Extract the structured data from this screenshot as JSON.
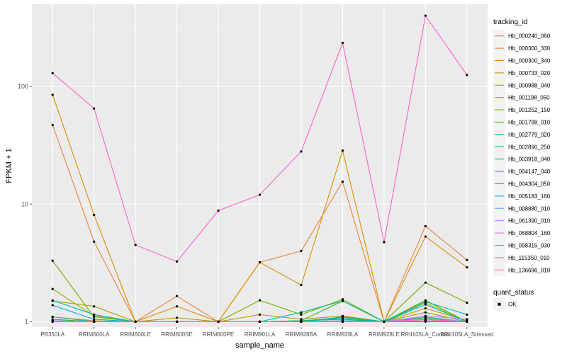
{
  "chart_data": {
    "type": "line",
    "xlabel": "sample_name",
    "ylabel": "FPKM + 1",
    "y_scale": "log10",
    "ylim": [
      0.9,
      500
    ],
    "yticks": [
      1,
      10,
      100
    ],
    "ytick_labels": [
      "1",
      "10",
      "100"
    ],
    "grid": true,
    "categories": [
      "PB350LA",
      "RRIM600LA",
      "RRIM600LE",
      "RRIM600SE",
      "RRIM600PE",
      "RRIM901LA",
      "RRIM928BA",
      "RRIM928LA",
      "RRIM928LE",
      "RRII105LA_Control",
      "RRII105LA_Stressed"
    ],
    "series": [
      {
        "name": "Hb_000240_060",
        "color": "#F8766D",
        "values": [
          1.02,
          1.0,
          1.0,
          1.0,
          1.0,
          1.0,
          1.0,
          1.02,
          1.0,
          1.02,
          1.0
        ]
      },
      {
        "name": "Hb_000300_330",
        "color": "#EC8239",
        "values": [
          47,
          4.8,
          1.0,
          1.65,
          1.0,
          3.2,
          4.0,
          15.5,
          1.0,
          6.5,
          3.35
        ]
      },
      {
        "name": "Hb_000300_340",
        "color": "#DB8E00",
        "values": [
          85,
          8.1,
          1.0,
          1.35,
          1.0,
          3.2,
          2.05,
          28.5,
          1.0,
          5.3,
          2.9
        ]
      },
      {
        "name": "Hb_000733_020",
        "color": "#C79800",
        "values": [
          1.1,
          1.02,
          1.0,
          1.08,
          1.0,
          1.15,
          1.05,
          1.12,
          1.0,
          1.3,
          1.02
        ]
      },
      {
        "name": "Hb_000988_040",
        "color": "#AFA100",
        "values": [
          1.5,
          1.35,
          1.0,
          1.0,
          1.0,
          1.0,
          1.02,
          1.08,
          1.0,
          1.45,
          1.0
        ]
      },
      {
        "name": "Hb_001198_050",
        "color": "#94AA00",
        "values": [
          1.9,
          1.12,
          1.0,
          1.0,
          1.0,
          1.0,
          1.02,
          1.05,
          1.0,
          1.2,
          1.0
        ]
      },
      {
        "name": "Hb_001252_150",
        "color": "#72B000",
        "values": [
          3.3,
          1.1,
          1.0,
          1.0,
          1.0,
          1.52,
          1.15,
          1.55,
          1.0,
          2.15,
          1.45
        ]
      },
      {
        "name": "Hb_001798_010",
        "color": "#3DB700",
        "values": [
          1.05,
          1.0,
          1.0,
          1.0,
          1.0,
          1.0,
          1.02,
          1.5,
          1.0,
          1.52,
          1.0
        ]
      },
      {
        "name": "Hb_002779_020",
        "color": "#00BA42",
        "values": [
          1.02,
          1.0,
          1.0,
          1.0,
          1.0,
          1.0,
          1.0,
          1.1,
          1.0,
          1.08,
          1.0
        ]
      },
      {
        "name": "Hb_002890_250",
        "color": "#00BD7B",
        "values": [
          1.02,
          1.0,
          1.0,
          1.0,
          1.0,
          1.0,
          1.02,
          1.05,
          1.0,
          1.02,
          1.0
        ]
      },
      {
        "name": "Hb_003918_040",
        "color": "#00BFA2",
        "values": [
          1.52,
          1.15,
          1.0,
          1.0,
          1.0,
          1.0,
          1.2,
          1.5,
          1.0,
          1.48,
          1.15
        ]
      },
      {
        "name": "Hb_004147_040",
        "color": "#00BFC4",
        "values": [
          1.02,
          1.0,
          1.0,
          1.0,
          1.0,
          1.0,
          1.0,
          1.08,
          1.0,
          1.05,
          1.0
        ]
      },
      {
        "name": "Hb_004304_050",
        "color": "#00B9E3",
        "values": [
          1.1,
          1.0,
          1.0,
          1.0,
          1.0,
          1.0,
          1.0,
          1.02,
          1.0,
          1.4,
          1.0
        ]
      },
      {
        "name": "Hb_005183_160",
        "color": "#00ADFA",
        "values": [
          1.38,
          1.05,
          1.0,
          1.0,
          1.0,
          1.0,
          1.0,
          1.0,
          1.0,
          1.0,
          1.0
        ]
      },
      {
        "name": "Hb_008880_010",
        "color": "#6BA4FF",
        "values": [
          1.02,
          1.0,
          1.0,
          1.0,
          1.0,
          1.0,
          1.0,
          1.0,
          1.0,
          1.1,
          1.0
        ]
      },
      {
        "name": "Hb_061390_010",
        "color": "#B385FF",
        "values": [
          1.02,
          1.0,
          1.0,
          1.0,
          1.0,
          1.0,
          1.0,
          1.0,
          1.0,
          1.12,
          1.05
        ]
      },
      {
        "name": "Hb_068804_160",
        "color": "#E36EF6",
        "values": [
          1.0,
          1.0,
          1.0,
          1.0,
          1.0,
          1.0,
          1.0,
          1.0,
          1.0,
          1.05,
          1.0
        ]
      },
      {
        "name": "Hb_098315_030",
        "color": "#FF61C9",
        "values": [
          130,
          65,
          4.5,
          3.25,
          8.8,
          12,
          28,
          235,
          4.75,
          400,
          125
        ]
      },
      {
        "name": "Hb_115350_010",
        "color": "#FF68A1",
        "values": [
          1.0,
          1.0,
          1.0,
          1.0,
          1.0,
          1.0,
          1.0,
          1.0,
          1.0,
          1.05,
          1.0
        ]
      },
      {
        "name": "Hb_136696_010",
        "color": "#FF6C91",
        "values": [
          1.0,
          1.0,
          1.0,
          1.0,
          1.0,
          1.0,
          1.0,
          1.0,
          1.0,
          1.02,
          1.0
        ]
      }
    ],
    "legend": {
      "title": "tracking_id",
      "placement": "right"
    },
    "shape_legend": {
      "title": "quant_status",
      "items": [
        "OK"
      ]
    }
  }
}
